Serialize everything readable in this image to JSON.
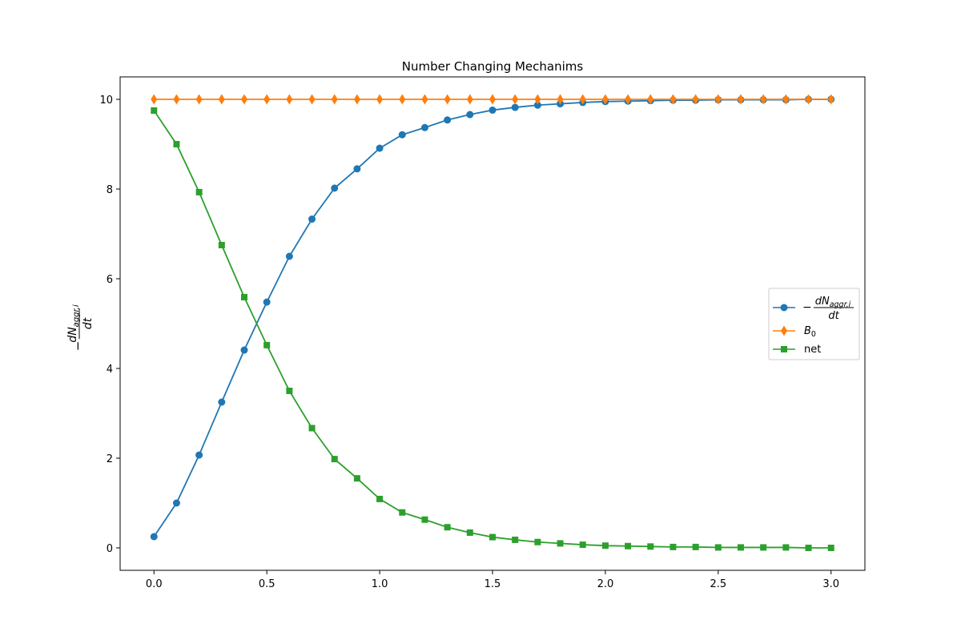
{
  "chart_data": {
    "type": "line",
    "title": "Number Changing Mechanims",
    "xlabel": "",
    "ylabel": "−dN_aggr,i/dt",
    "ylabel_parts": {
      "sign": "−",
      "numerator_base": "dN",
      "numerator_sub": "aggr,i",
      "denominator": "dt"
    },
    "xlim": [
      -0.15,
      3.15
    ],
    "ylim": [
      -0.5,
      10.5
    ],
    "xticks": [
      0.0,
      0.5,
      1.0,
      1.5,
      2.0,
      2.5,
      3.0
    ],
    "xtick_labels": [
      "0.0",
      "0.5",
      "1.0",
      "1.5",
      "2.0",
      "2.5",
      "3.0"
    ],
    "yticks": [
      0,
      2,
      4,
      6,
      8,
      10
    ],
    "ytick_labels": [
      "0",
      "2",
      "4",
      "6",
      "8",
      "10"
    ],
    "grid": false,
    "legend_position": "center-right",
    "x": [
      0.0,
      0.1,
      0.2,
      0.3,
      0.4,
      0.5,
      0.6,
      0.7,
      0.8,
      0.9,
      1.0,
      1.1,
      1.2,
      1.3,
      1.4,
      1.5,
      1.6,
      1.7,
      1.8,
      1.9,
      2.0,
      2.1,
      2.2,
      2.3,
      2.4,
      2.5,
      2.6,
      2.7,
      2.8,
      2.9,
      3.0
    ],
    "series": [
      {
        "legend": {
          "sign": "−",
          "numerator_base": "dN",
          "numerator_sub": "aggr,i",
          "denominator": "dt"
        },
        "marker": "circle",
        "color": "#1f77b4",
        "values": [
          0.25,
          1.0,
          2.07,
          3.25,
          4.41,
          5.48,
          6.5,
          7.33,
          8.02,
          8.45,
          8.91,
          9.21,
          9.37,
          9.54,
          9.66,
          9.76,
          9.82,
          9.87,
          9.9,
          9.93,
          9.95,
          9.96,
          9.97,
          9.98,
          9.98,
          9.99,
          9.99,
          9.99,
          9.99,
          10.0,
          10.0
        ]
      },
      {
        "legend": {
          "base": "B",
          "sub": "0"
        },
        "marker": "diamond",
        "color": "#ff7f0e",
        "values": [
          10,
          10,
          10,
          10,
          10,
          10,
          10,
          10,
          10,
          10,
          10,
          10,
          10,
          10,
          10,
          10,
          10,
          10,
          10,
          10,
          10,
          10,
          10,
          10,
          10,
          10,
          10,
          10,
          10,
          10,
          10
        ]
      },
      {
        "name": "net",
        "marker": "square",
        "color": "#2ca02c",
        "values": [
          9.75,
          9.0,
          7.93,
          6.75,
          5.59,
          4.52,
          3.5,
          2.67,
          1.98,
          1.55,
          1.09,
          0.79,
          0.63,
          0.46,
          0.34,
          0.24,
          0.18,
          0.13,
          0.1,
          0.07,
          0.05,
          0.04,
          0.03,
          0.02,
          0.02,
          0.01,
          0.01,
          0.01,
          0.01,
          0.0,
          0.0
        ]
      }
    ]
  }
}
